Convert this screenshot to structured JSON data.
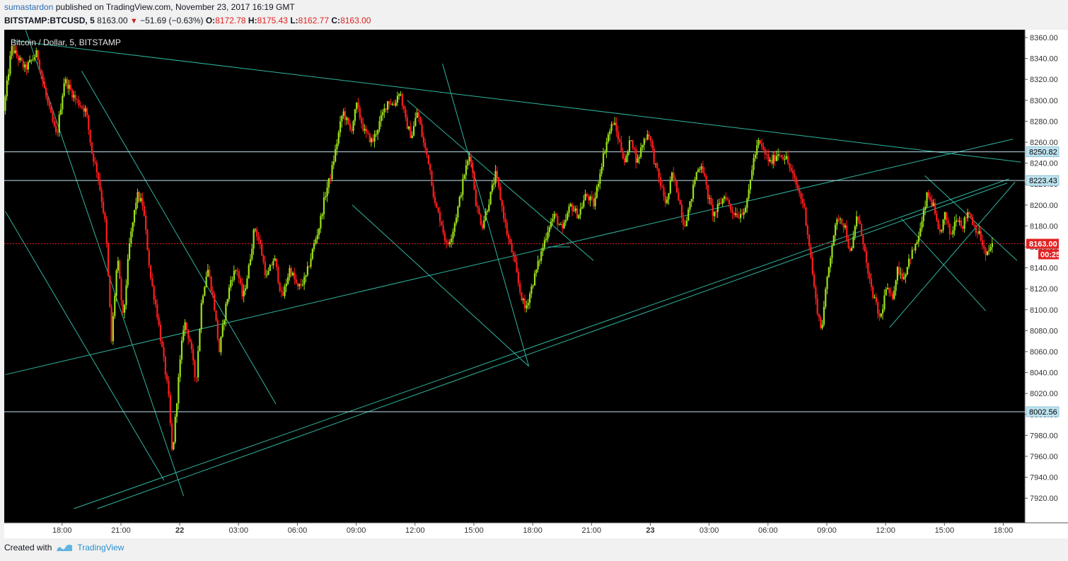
{
  "header": {
    "author": "sumastardon",
    "published_text": "published on TradingView.com, November 23, 2017 16:19 GMT",
    "symbol": "BITSTAMP:BTCUSD, 5",
    "last": "8163.00",
    "change": "−51.69 (−0.63%)",
    "o_label": "O:",
    "o": "8172.78",
    "h_label": "H:",
    "h": "8175.43",
    "l_label": "L:",
    "l": "8162.77",
    "c_label": "C:",
    "c": "8163.00"
  },
  "footer": {
    "created_with": "Created with",
    "brand": "TradingView"
  },
  "colors": {
    "background": "#000000",
    "up": "#9be21a",
    "down": "#ff1d1d",
    "trendline": "#2fb5a0",
    "hline": "#bfe4f0",
    "last_price": "#e22222"
  },
  "chart_data": {
    "type": "candlestick",
    "title": "Bitcoin / Dollar, 5, BITSTAMP",
    "ylim": [
      7910,
      8370
    ],
    "y_ticks": [
      "8360.00",
      "8340.00",
      "8320.00",
      "8300.00",
      "8280.00",
      "8260.00",
      "8240.00",
      "8220.00",
      "8200.00",
      "8180.00",
      "8160.00",
      "8140.00",
      "8120.00",
      "8100.00",
      "8080.00",
      "8060.00",
      "8040.00",
      "8020.00",
      "8000.00",
      "7980.00",
      "7960.00",
      "7940.00",
      "7920.00"
    ],
    "x_ticks": [
      "18:00",
      "21:00",
      "22",
      "03:00",
      "06:00",
      "09:00",
      "12:00",
      "15:00",
      "18:00",
      "21:00",
      "23",
      "03:00",
      "06:00",
      "09:00",
      "12:00",
      "15:00",
      "18:00"
    ],
    "x_tick_hours": [
      18,
      21,
      24,
      27,
      30,
      33,
      36,
      39,
      42,
      45,
      48,
      51,
      54,
      57,
      60,
      63,
      66
    ],
    "x_range_hours": [
      15.05,
      67.1
    ],
    "price_path": [
      [
        15.1,
        8290
      ],
      [
        15.5,
        8350
      ],
      [
        16.2,
        8330
      ],
      [
        16.8,
        8345
      ],
      [
        17.3,
        8300
      ],
      [
        17.8,
        8265
      ],
      [
        18.2,
        8320
      ],
      [
        18.8,
        8300
      ],
      [
        19.3,
        8290
      ],
      [
        19.6,
        8250
      ],
      [
        19.9,
        8230
      ],
      [
        20.3,
        8180
      ],
      [
        20.6,
        8070
      ],
      [
        20.9,
        8150
      ],
      [
        21.2,
        8090
      ],
      [
        21.5,
        8160
      ],
      [
        21.9,
        8210
      ],
      [
        22.2,
        8200
      ],
      [
        22.6,
        8130
      ],
      [
        22.9,
        8100
      ],
      [
        23.2,
        8060
      ],
      [
        23.5,
        8020
      ],
      [
        23.7,
        7960
      ],
      [
        24.0,
        8030
      ],
      [
        24.3,
        8090
      ],
      [
        24.6,
        8070
      ],
      [
        24.9,
        8030
      ],
      [
        25.2,
        8110
      ],
      [
        25.5,
        8140
      ],
      [
        25.8,
        8110
      ],
      [
        26.1,
        8060
      ],
      [
        26.4,
        8100
      ],
      [
        26.7,
        8130
      ],
      [
        27.0,
        8140
      ],
      [
        27.3,
        8110
      ],
      [
        27.6,
        8140
      ],
      [
        27.9,
        8180
      ],
      [
        28.2,
        8160
      ],
      [
        28.5,
        8130
      ],
      [
        28.9,
        8150
      ],
      [
        29.3,
        8110
      ],
      [
        29.7,
        8140
      ],
      [
        30.1,
        8120
      ],
      [
        30.5,
        8130
      ],
      [
        30.9,
        8160
      ],
      [
        31.2,
        8180
      ],
      [
        31.5,
        8210
      ],
      [
        31.8,
        8230
      ],
      [
        32.1,
        8260
      ],
      [
        32.4,
        8290
      ],
      [
        32.8,
        8270
      ],
      [
        33.1,
        8295
      ],
      [
        33.5,
        8270
      ],
      [
        33.9,
        8260
      ],
      [
        34.3,
        8280
      ],
      [
        34.7,
        8300
      ],
      [
        35.0,
        8295
      ],
      [
        35.3,
        8310
      ],
      [
        35.6,
        8280
      ],
      [
        35.9,
        8265
      ],
      [
        36.2,
        8290
      ],
      [
        36.5,
        8260
      ],
      [
        36.8,
        8240
      ],
      [
        37.1,
        8200
      ],
      [
        37.4,
        8185
      ],
      [
        37.7,
        8160
      ],
      [
        38.0,
        8175
      ],
      [
        38.3,
        8200
      ],
      [
        38.6,
        8230
      ],
      [
        38.9,
        8250
      ],
      [
        39.2,
        8200
      ],
      [
        39.5,
        8180
      ],
      [
        39.8,
        8200
      ],
      [
        40.2,
        8230
      ],
      [
        40.5,
        8200
      ],
      [
        40.8,
        8170
      ],
      [
        41.1,
        8150
      ],
      [
        41.4,
        8120
      ],
      [
        41.7,
        8100
      ],
      [
        42.0,
        8120
      ],
      [
        42.3,
        8140
      ],
      [
        42.6,
        8160
      ],
      [
        42.9,
        8180
      ],
      [
        43.2,
        8190
      ],
      [
        43.6,
        8175
      ],
      [
        44.0,
        8200
      ],
      [
        44.4,
        8190
      ],
      [
        44.8,
        8210
      ],
      [
        45.2,
        8200
      ],
      [
        45.6,
        8240
      ],
      [
        45.9,
        8265
      ],
      [
        46.2,
        8280
      ],
      [
        46.5,
        8260
      ],
      [
        46.8,
        8240
      ],
      [
        47.1,
        8265
      ],
      [
        47.4,
        8240
      ],
      [
        47.7,
        8260
      ],
      [
        48.0,
        8270
      ],
      [
        48.3,
        8240
      ],
      [
        48.6,
        8220
      ],
      [
        48.9,
        8200
      ],
      [
        49.2,
        8230
      ],
      [
        49.5,
        8210
      ],
      [
        49.8,
        8180
      ],
      [
        50.1,
        8200
      ],
      [
        50.4,
        8230
      ],
      [
        50.7,
        8240
      ],
      [
        51.0,
        8210
      ],
      [
        51.3,
        8190
      ],
      [
        51.6,
        8200
      ],
      [
        51.9,
        8210
      ],
      [
        52.2,
        8195
      ],
      [
        52.6,
        8190
      ],
      [
        53.0,
        8200
      ],
      [
        53.3,
        8240
      ],
      [
        53.6,
        8260
      ],
      [
        53.9,
        8250
      ],
      [
        54.2,
        8240
      ],
      [
        54.6,
        8250
      ],
      [
        55.0,
        8245
      ],
      [
        55.3,
        8230
      ],
      [
        55.6,
        8215
      ],
      [
        55.9,
        8200
      ],
      [
        56.2,
        8160
      ],
      [
        56.5,
        8110
      ],
      [
        56.8,
        8080
      ],
      [
        57.1,
        8130
      ],
      [
        57.4,
        8170
      ],
      [
        57.7,
        8190
      ],
      [
        58.0,
        8180
      ],
      [
        58.3,
        8150
      ],
      [
        58.6,
        8190
      ],
      [
        58.9,
        8170
      ],
      [
        59.2,
        8130
      ],
      [
        59.5,
        8110
      ],
      [
        59.8,
        8090
      ],
      [
        60.1,
        8120
      ],
      [
        60.4,
        8110
      ],
      [
        60.7,
        8140
      ],
      [
        61.0,
        8130
      ],
      [
        61.3,
        8150
      ],
      [
        61.6,
        8160
      ],
      [
        61.9,
        8180
      ],
      [
        62.2,
        8210
      ],
      [
        62.5,
        8200
      ],
      [
        62.8,
        8170
      ],
      [
        63.1,
        8190
      ],
      [
        63.4,
        8170
      ],
      [
        63.7,
        8190
      ],
      [
        64.0,
        8180
      ],
      [
        64.3,
        8195
      ],
      [
        64.6,
        8180
      ],
      [
        64.9,
        8170
      ],
      [
        65.2,
        8150
      ],
      [
        65.5,
        8163
      ]
    ],
    "horizontal_lines": [
      {
        "price": 8250.82,
        "label": "8250.82"
      },
      {
        "price": 8223.43,
        "label": "8223.43"
      },
      {
        "price": 8002.56,
        "label": "8002.56"
      }
    ],
    "last_price": {
      "price": 8163.0,
      "label": "8163.00",
      "countdown": "00:25"
    },
    "trendlines": [
      [
        [
          15.5,
          8357
        ],
        [
          66.9,
          8241
        ]
      ],
      [
        [
          16.0,
          8375
        ],
        [
          24.2,
          7922
        ]
      ],
      [
        [
          15.1,
          8194
        ],
        [
          23.2,
          7937
        ]
      ],
      [
        [
          15.1,
          8038
        ],
        [
          66.5,
          8263
        ]
      ],
      [
        [
          19.0,
          8328
        ],
        [
          28.9,
          8010
        ]
      ],
      [
        [
          18.6,
          7910
        ],
        [
          66.3,
          8225
        ]
      ],
      [
        [
          19.8,
          7910
        ],
        [
          66.2,
          8221
        ]
      ],
      [
        [
          35.6,
          8300
        ],
        [
          45.1,
          8147
        ]
      ],
      [
        [
          37.4,
          8335
        ],
        [
          41.8,
          8046
        ]
      ],
      [
        [
          32.8,
          8200
        ],
        [
          41.8,
          8046
        ]
      ],
      [
        [
          42.8,
          8160
        ],
        [
          43.9,
          8160
        ]
      ],
      [
        [
          62.0,
          8228
        ],
        [
          66.7,
          8147
        ]
      ],
      [
        [
          60.8,
          8187
        ],
        [
          65.1,
          8099
        ]
      ],
      [
        [
          60.2,
          8083
        ],
        [
          66.6,
          8222
        ]
      ]
    ]
  }
}
